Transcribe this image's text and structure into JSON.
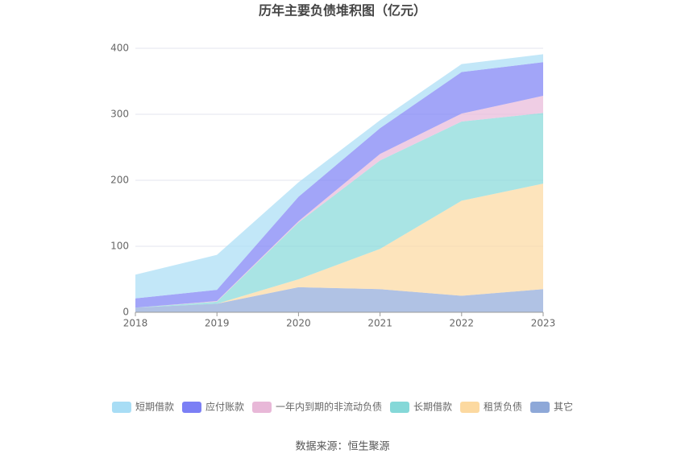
{
  "chart_data": {
    "type": "stacked_area",
    "title": "历年主要负债堆积图（亿元）",
    "source": "数据来源：恒生聚源",
    "categories": [
      "2018",
      "2019",
      "2020",
      "2021",
      "2022",
      "2023"
    ],
    "series": [
      {
        "name": "其它",
        "color": "#8ea8d8",
        "values": [
          7,
          13,
          38,
          35,
          25,
          35
        ]
      },
      {
        "name": "租赁负债",
        "color": "#fcd9a0",
        "values": [
          0,
          0,
          12,
          61,
          144,
          160
        ]
      },
      {
        "name": "长期借款",
        "color": "#85d8d8",
        "values": [
          0,
          3,
          86,
          134,
          120,
          107
        ]
      },
      {
        "name": "一年内到期的非流动负债",
        "color": "#e8b8d8",
        "values": [
          0,
          1,
          2,
          10,
          12,
          26
        ]
      },
      {
        "name": "应付账款",
        "color": "#7b7ff5",
        "values": [
          14,
          17,
          37,
          39,
          63,
          51
        ]
      },
      {
        "name": "短期借款",
        "color": "#a8ddf5",
        "values": [
          36,
          53,
          22,
          12,
          12,
          12
        ]
      }
    ],
    "ylim": [
      0,
      400
    ],
    "yticks": [
      0,
      100,
      200,
      300,
      400
    ],
    "grid": true
  }
}
